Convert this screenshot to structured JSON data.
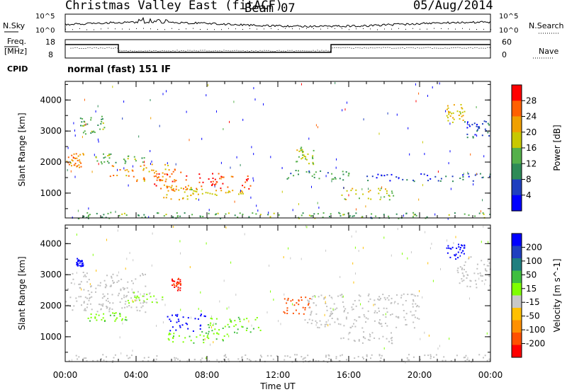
{
  "header": {
    "title": "Christmas Valley East (fitACF)",
    "beam": "Beam 07",
    "date": "05/Aug/2014"
  },
  "noise_panel": {
    "left_label": "N.Sky",
    "right_label": "N.Search",
    "left_ticks": [
      "10^5",
      "10^0"
    ],
    "right_ticks": [
      "10^5",
      "10^0"
    ]
  },
  "freq_panel": {
    "left_label_1": "Freq.",
    "left_label_2": "[MHz]",
    "right_label": "Nave",
    "left_ticks": [
      "18",
      "8"
    ],
    "right_ticks": [
      "60",
      "0"
    ]
  },
  "cpid": {
    "label": "CPID",
    "text": "normal (fast) 151 IF"
  },
  "colors": {
    "power_scale": [
      "#0000ff",
      "#1f3fbf",
      "#2e8b57",
      "#55b04a",
      "#c8c800",
      "#f0a000",
      "#ff6000",
      "#ff0000"
    ],
    "velocity_scale": [
      "#ff0000",
      "#ff5000",
      "#ff9000",
      "#ffc000",
      "#c8c8c8",
      "#7fff00",
      "#3fbf3f",
      "#1f7f7f",
      "#2040c0",
      "#0000ff"
    ],
    "ground_scatter": "#c0c0c0"
  },
  "chart_data": [
    {
      "type": "heatmap",
      "panel": "power",
      "ylabel": "Slant Range [km]",
      "y_ticks": [
        "4000",
        "3000",
        "2000",
        "1000"
      ],
      "ylim": [
        200,
        4600
      ],
      "x_ticks": [
        "00:00",
        "04:00",
        "08:00",
        "12:00",
        "16:00",
        "20:00",
        "00:00"
      ],
      "xlim_hours": [
        0,
        24
      ],
      "colorbar": {
        "label": "Power [dB]",
        "ticks": [
          "28",
          "24",
          "20",
          "16",
          "12",
          "8",
          "4"
        ],
        "range": [
          0,
          30
        ]
      },
      "features": [
        {
          "t": [
            0.0,
            1.0
          ],
          "range": [
            1850,
            2300
          ],
          "value": 22
        },
        {
          "t": [
            0.8,
            2.2
          ],
          "range": [
            2900,
            3500
          ],
          "value": 12
        },
        {
          "t": [
            1.5,
            4.5
          ],
          "range": [
            1950,
            2300
          ],
          "value": 14
        },
        {
          "t": [
            2.5,
            6.2
          ],
          "range": [
            1400,
            1950
          ],
          "value": 22
        },
        {
          "t": [
            5.0,
            7.0
          ],
          "range": [
            1100,
            1700
          ],
          "value": 24
        },
        {
          "t": [
            5.5,
            7.5
          ],
          "range": [
            800,
            1250
          ],
          "value": 20
        },
        {
          "t": [
            7.5,
            10.5
          ],
          "range": [
            1150,
            1650
          ],
          "value": 26
        },
        {
          "t": [
            6.5,
            10.0
          ],
          "range": [
            950,
            1150
          ],
          "value": 18
        },
        {
          "t": [
            12.5,
            16.0
          ],
          "range": [
            1400,
            1750
          ],
          "value": 10
        },
        {
          "t": [
            13.0,
            14.0
          ],
          "range": [
            1950,
            2500
          ],
          "value": 16
        },
        {
          "t": [
            15.5,
            18.5
          ],
          "range": [
            800,
            1200
          ],
          "value": 16
        },
        {
          "t": [
            17.0,
            24.0
          ],
          "range": [
            1400,
            1650
          ],
          "value": 6
        },
        {
          "t": [
            21.5,
            22.5
          ],
          "range": [
            3300,
            3900
          ],
          "value": 18
        },
        {
          "t": [
            22.5,
            24.0
          ],
          "range": [
            2800,
            3400
          ],
          "value": 6
        },
        {
          "t": [
            0.0,
            24.0
          ],
          "range": [
            200,
            400
          ],
          "value": 12
        }
      ]
    },
    {
      "type": "heatmap",
      "panel": "velocity",
      "ylabel": "Slant Range [km]",
      "y_ticks": [
        "4000",
        "3000",
        "2000",
        "1000"
      ],
      "ylim": [
        200,
        4600
      ],
      "x_ticks": [
        "00:00",
        "04:00",
        "08:00",
        "12:00",
        "16:00",
        "20:00",
        "00:00"
      ],
      "xlabel": "Time UT",
      "xlim_hours": [
        0,
        24
      ],
      "colorbar": {
        "label": "Velocity [m s^-1]",
        "ticks": [
          "200",
          "100",
          "50",
          "15",
          "-15",
          "-50",
          "-100",
          "-200"
        ],
        "range": [
          -250,
          250
        ]
      },
      "features": [
        {
          "t": [
            0.0,
            4.5
          ],
          "range": [
            1800,
            3100
          ],
          "value": 0
        },
        {
          "t": [
            0.6,
            1.0
          ],
          "range": [
            3250,
            3550
          ],
          "value": 220
        },
        {
          "t": [
            3.5,
            5.5
          ],
          "range": [
            2100,
            2450
          ],
          "value": 30
        },
        {
          "t": [
            1.0,
            3.5
          ],
          "range": [
            1500,
            1800
          ],
          "value": 40
        },
        {
          "t": [
            5.7,
            8.0
          ],
          "range": [
            1200,
            1750
          ],
          "value": 220
        },
        {
          "t": [
            5.7,
            9.0
          ],
          "range": [
            800,
            1200
          ],
          "value": 40
        },
        {
          "t": [
            8.0,
            11.0
          ],
          "range": [
            1100,
            1700
          ],
          "value": 40
        },
        {
          "t": [
            12.3,
            13.8
          ],
          "range": [
            1700,
            2300
          ],
          "value": -150
        },
        {
          "t": [
            6.0,
            6.5
          ],
          "range": [
            2500,
            2900
          ],
          "value": -200
        },
        {
          "t": [
            13.5,
            20.0
          ],
          "range": [
            1300,
            2400
          ],
          "value": 0
        },
        {
          "t": [
            15.5,
            18.5
          ],
          "range": [
            800,
            1200
          ],
          "value": 0
        },
        {
          "t": [
            21.5,
            22.5
          ],
          "range": [
            3500,
            4000
          ],
          "value": 220
        },
        {
          "t": [
            22.0,
            24.0
          ],
          "range": [
            2600,
            3600
          ],
          "value": 0
        },
        {
          "t": [
            0.0,
            24.0
          ],
          "range": [
            200,
            450
          ],
          "value": 0
        }
      ]
    }
  ]
}
